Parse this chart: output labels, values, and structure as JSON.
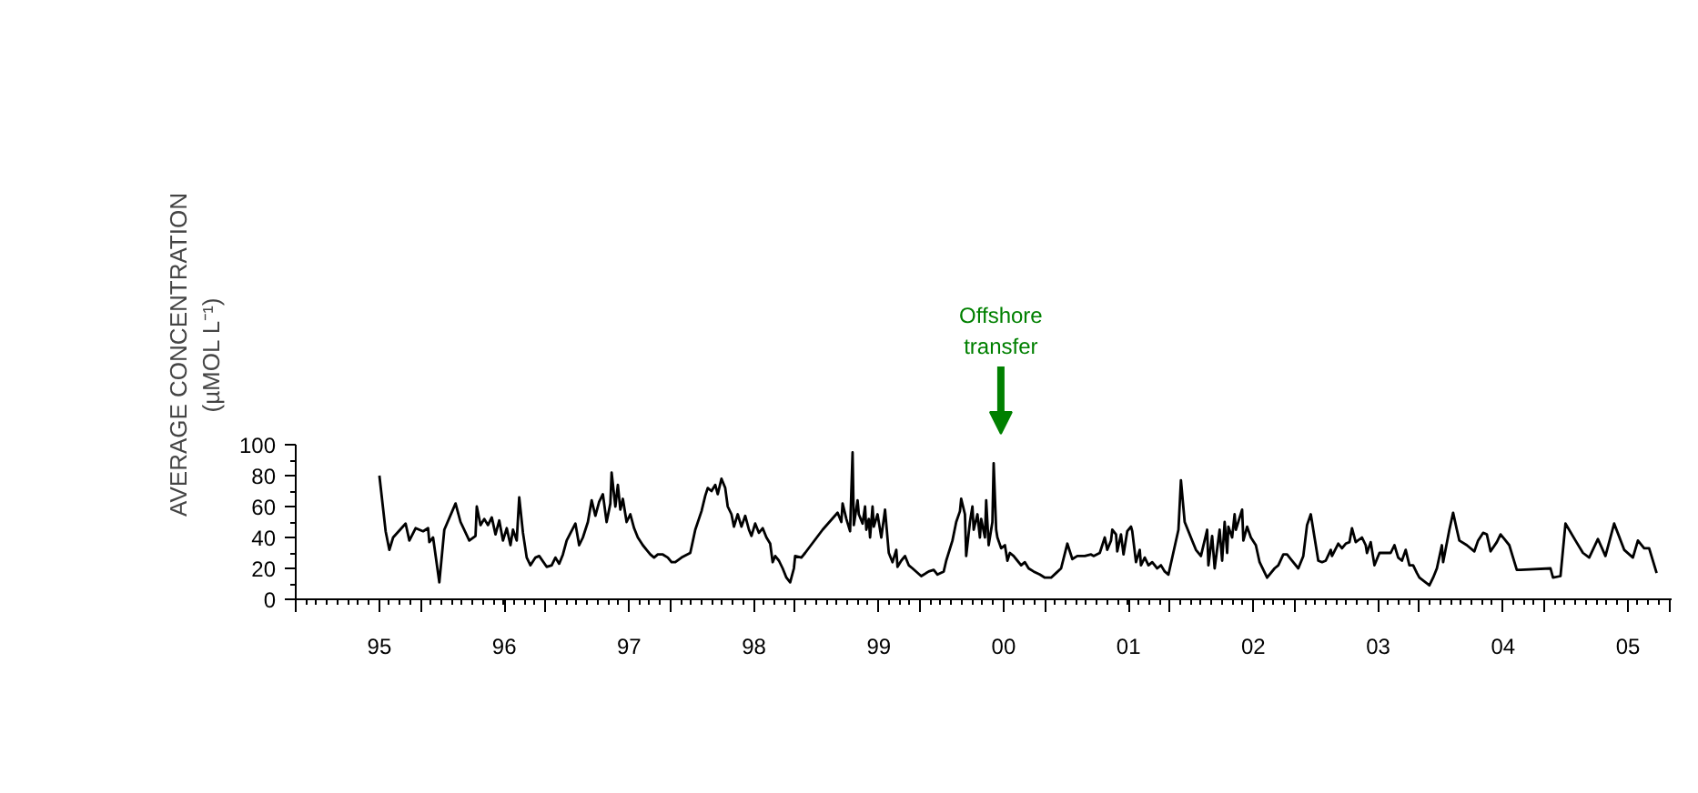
{
  "chart_data": {
    "type": "line",
    "ylabel": "AVERAGE CONCENTRATION\n(µMOL L⁻¹)",
    "xlim": [
      1994.33,
      2005.35
    ],
    "xticks": [
      {
        "value": 1994.33,
        "label": null
      },
      {
        "value": 1995,
        "label": "95"
      },
      {
        "value": 1995.33,
        "label": null
      },
      {
        "value": 1996,
        "label": "96"
      },
      {
        "value": 1996.33,
        "label": null
      },
      {
        "value": 1997,
        "label": "97"
      },
      {
        "value": 1997.33,
        "label": null
      },
      {
        "value": 1998,
        "label": "98"
      },
      {
        "value": 1998.33,
        "label": null
      },
      {
        "value": 1999,
        "label": "99"
      },
      {
        "value": 1999.33,
        "label": null
      },
      {
        "value": 2000,
        "label": "00"
      },
      {
        "value": 2000.33,
        "label": null
      },
      {
        "value": 2001,
        "label": "01"
      },
      {
        "value": 2001.33,
        "label": null
      },
      {
        "value": 2002,
        "label": "02"
      },
      {
        "value": 2002.33,
        "label": null
      },
      {
        "value": 2003,
        "label": "03"
      },
      {
        "value": 2003.33,
        "label": null
      },
      {
        "value": 2004,
        "label": "04"
      },
      {
        "value": 2004.33,
        "label": null
      },
      {
        "value": 2005,
        "label": "05"
      },
      {
        "value": 2005.33,
        "label": null
      }
    ],
    "ylim": [
      0,
      100
    ],
    "yticks": [
      0,
      20,
      40,
      60,
      80,
      100
    ],
    "grid": false,
    "marker": "none",
    "line_style": "solid",
    "annotations": [
      "Offshore\ntransfer"
    ],
    "series": [
      {
        "color": "#000000",
        "x": [
          1995.0,
          1995.05,
          1995.08,
          1995.11,
          1995.21,
          1995.24,
          1995.29,
          1995.35,
          1995.39,
          1995.4,
          1995.43,
          1995.48,
          1995.52,
          1995.61,
          1995.65,
          1995.72,
          1995.77,
          1995.78,
          1995.81,
          1995.84,
          1995.87,
          1995.9,
          1995.93,
          1995.96,
          1995.99,
          1996.02,
          1996.05,
          1996.07,
          1996.1,
          1996.12,
          1996.15,
          1996.18,
          1996.21,
          1996.25,
          1996.28,
          1996.34,
          1996.38,
          1996.41,
          1996.44,
          1996.47,
          1996.5,
          1996.57,
          1996.6,
          1996.63,
          1996.67,
          1996.7,
          1996.73,
          1996.76,
          1996.79,
          1996.82,
          1996.85,
          1996.86,
          1996.89,
          1996.91,
          1996.93,
          1996.95,
          1996.98,
          1997.01,
          1997.04,
          1997.07,
          1997.11,
          1997.14,
          1997.17,
          1997.2,
          1997.23,
          1997.27,
          1997.31,
          1997.34,
          1997.37,
          1997.42,
          1997.49,
          1997.53,
          1997.58,
          1997.61,
          1997.63,
          1997.66,
          1997.69,
          1997.71,
          1997.74,
          1997.77,
          1997.79,
          1997.82,
          1997.84,
          1997.87,
          1997.9,
          1997.93,
          1997.96,
          1997.98,
          1998.01,
          1998.04,
          1998.07,
          1998.1,
          1998.13,
          1998.15,
          1998.17,
          1998.2,
          1998.23,
          1998.26,
          1998.29,
          1998.32,
          1998.33,
          1998.38,
          1998.41,
          1998.55,
          1998.67,
          1998.7,
          1998.71,
          1998.74,
          1998.77,
          1998.79,
          1998.8,
          1998.83,
          1998.84,
          1998.87,
          1998.89,
          1998.9,
          1998.92,
          1998.93,
          1998.95,
          1998.96,
          1998.99,
          1999.02,
          1999.05,
          1999.08,
          1999.11,
          1999.14,
          1999.15,
          1999.18,
          1999.21,
          1999.24,
          1999.27,
          1999.34,
          1999.4,
          1999.44,
          1999.47,
          1999.52,
          1999.54,
          1999.59,
          1999.62,
          1999.65,
          1999.66,
          1999.69,
          1999.7,
          1999.73,
          1999.75,
          1999.76,
          1999.79,
          1999.81,
          1999.82,
          1999.85,
          1999.86,
          1999.88,
          1999.91,
          1999.92,
          1999.94,
          1999.95,
          1999.98,
          2000.01,
          2000.03,
          2000.05,
          2000.08,
          2000.11,
          2000.14,
          2000.17,
          2000.2,
          2000.24,
          2000.29,
          2000.33,
          2000.38,
          2000.42,
          2000.46,
          2000.51,
          2000.55,
          2000.59,
          2000.65,
          2000.7,
          2000.72,
          2000.77,
          2000.81,
          2000.83,
          2000.86,
          2000.87,
          2000.9,
          2000.91,
          2000.94,
          2000.96,
          2000.99,
          2001.02,
          2001.03,
          2001.06,
          2001.09,
          2001.1,
          2001.13,
          2001.16,
          2001.19,
          2001.23,
          2001.26,
          2001.29,
          2001.32,
          2001.4,
          2001.42,
          2001.45,
          2001.51,
          2001.54,
          2001.58,
          2001.63,
          2001.64,
          2001.67,
          2001.69,
          2001.73,
          2001.75,
          2001.77,
          2001.79,
          2001.8,
          2001.83,
          2001.85,
          2001.86,
          2001.91,
          2001.92,
          2001.95,
          2001.98,
          2002.02,
          2002.05,
          2002.11,
          2002.17,
          2002.2,
          2002.24,
          2002.27,
          2002.3,
          2002.36,
          2002.4,
          2002.43,
          2002.46,
          2002.49,
          2002.52,
          2002.55,
          2002.58,
          2002.62,
          2002.63,
          2002.68,
          2002.71,
          2002.74,
          2002.77,
          2002.79,
          2002.82,
          2002.87,
          2002.9,
          2002.91,
          2002.94,
          2002.97,
          2003.01,
          2003.1,
          2003.13,
          2003.16,
          2003.19,
          2003.22,
          2003.25,
          2003.28,
          2003.31,
          2003.33,
          2003.41,
          2003.44,
          2003.47,
          2003.51,
          2003.52,
          2003.57,
          2003.6,
          2003.63,
          2003.65,
          2003.71,
          2003.77,
          2003.8,
          2003.84,
          2003.87,
          2003.9,
          2003.95,
          2003.98,
          2004.01,
          2004.05,
          2004.08,
          2004.11,
          2004.14,
          2004.38,
          2004.4,
          2004.46,
          2004.5,
          2004.58,
          2004.64,
          2004.69,
          2004.76,
          2004.82,
          2004.89,
          2004.97,
          2005.04,
          2005.08,
          2005.13,
          2005.17,
          2005.23
        ],
        "values": [
          80,
          44,
          32,
          40,
          49,
          38,
          46,
          44,
          46,
          37,
          40,
          11,
          45,
          62,
          50,
          38,
          41,
          60,
          48,
          52,
          48,
          53,
          42,
          51,
          38,
          46,
          35,
          45,
          38,
          66,
          43,
          27,
          22,
          27,
          28,
          21,
          22,
          27,
          23,
          29,
          38,
          49,
          35,
          40,
          50,
          64,
          54,
          63,
          68,
          50,
          62,
          82,
          60,
          74,
          58,
          65,
          50,
          55,
          46,
          40,
          35,
          32,
          29,
          27,
          29,
          29,
          27,
          24,
          24,
          27,
          30,
          45,
          57,
          67,
          72,
          70,
          74,
          68,
          78,
          72,
          60,
          55,
          47,
          55,
          47,
          54,
          45,
          41,
          49,
          43,
          46,
          40,
          36,
          24,
          28,
          25,
          20,
          14,
          11,
          20,
          28,
          27,
          30,
          45,
          56,
          50,
          62,
          52,
          44,
          95,
          48,
          64,
          55,
          49,
          60,
          45,
          52,
          40,
          60,
          47,
          55,
          40,
          58,
          30,
          24,
          32,
          21,
          25,
          28,
          22,
          20,
          15,
          18,
          19,
          16,
          18,
          25,
          38,
          50,
          57,
          65,
          55,
          28,
          50,
          60,
          45,
          55,
          40,
          52,
          40,
          64,
          35,
          50,
          88,
          45,
          40,
          33,
          35,
          25,
          30,
          28,
          25,
          22,
          24,
          20,
          18,
          16,
          14,
          14,
          17,
          20,
          36,
          26,
          28,
          28,
          29,
          28,
          30,
          40,
          32,
          38,
          45,
          42,
          31,
          42,
          29,
          44,
          47,
          44,
          24,
          32,
          22,
          27,
          22,
          24,
          20,
          22,
          18,
          16,
          45,
          77,
          50,
          38,
          32,
          28,
          45,
          22,
          41,
          20,
          45,
          25,
          50,
          30,
          47,
          40,
          55,
          45,
          58,
          38,
          47,
          40,
          35,
          24,
          14,
          20,
          22,
          29,
          29,
          26,
          20,
          28,
          48,
          55,
          40,
          25,
          24,
          25,
          32,
          28,
          36,
          33,
          36,
          37,
          46,
          37,
          40,
          35,
          30,
          37,
          22,
          30,
          30,
          35,
          27,
          25,
          32,
          22,
          22,
          17,
          14,
          9,
          14,
          20,
          35,
          24,
          45,
          56,
          45,
          38,
          35,
          31,
          38,
          43,
          42,
          31,
          37,
          42,
          39,
          35,
          27,
          19,
          19,
          20,
          14,
          15,
          49,
          38,
          30,
          27,
          39,
          28,
          49,
          32,
          27,
          38,
          33,
          33,
          17
        ]
      }
    ]
  }
}
